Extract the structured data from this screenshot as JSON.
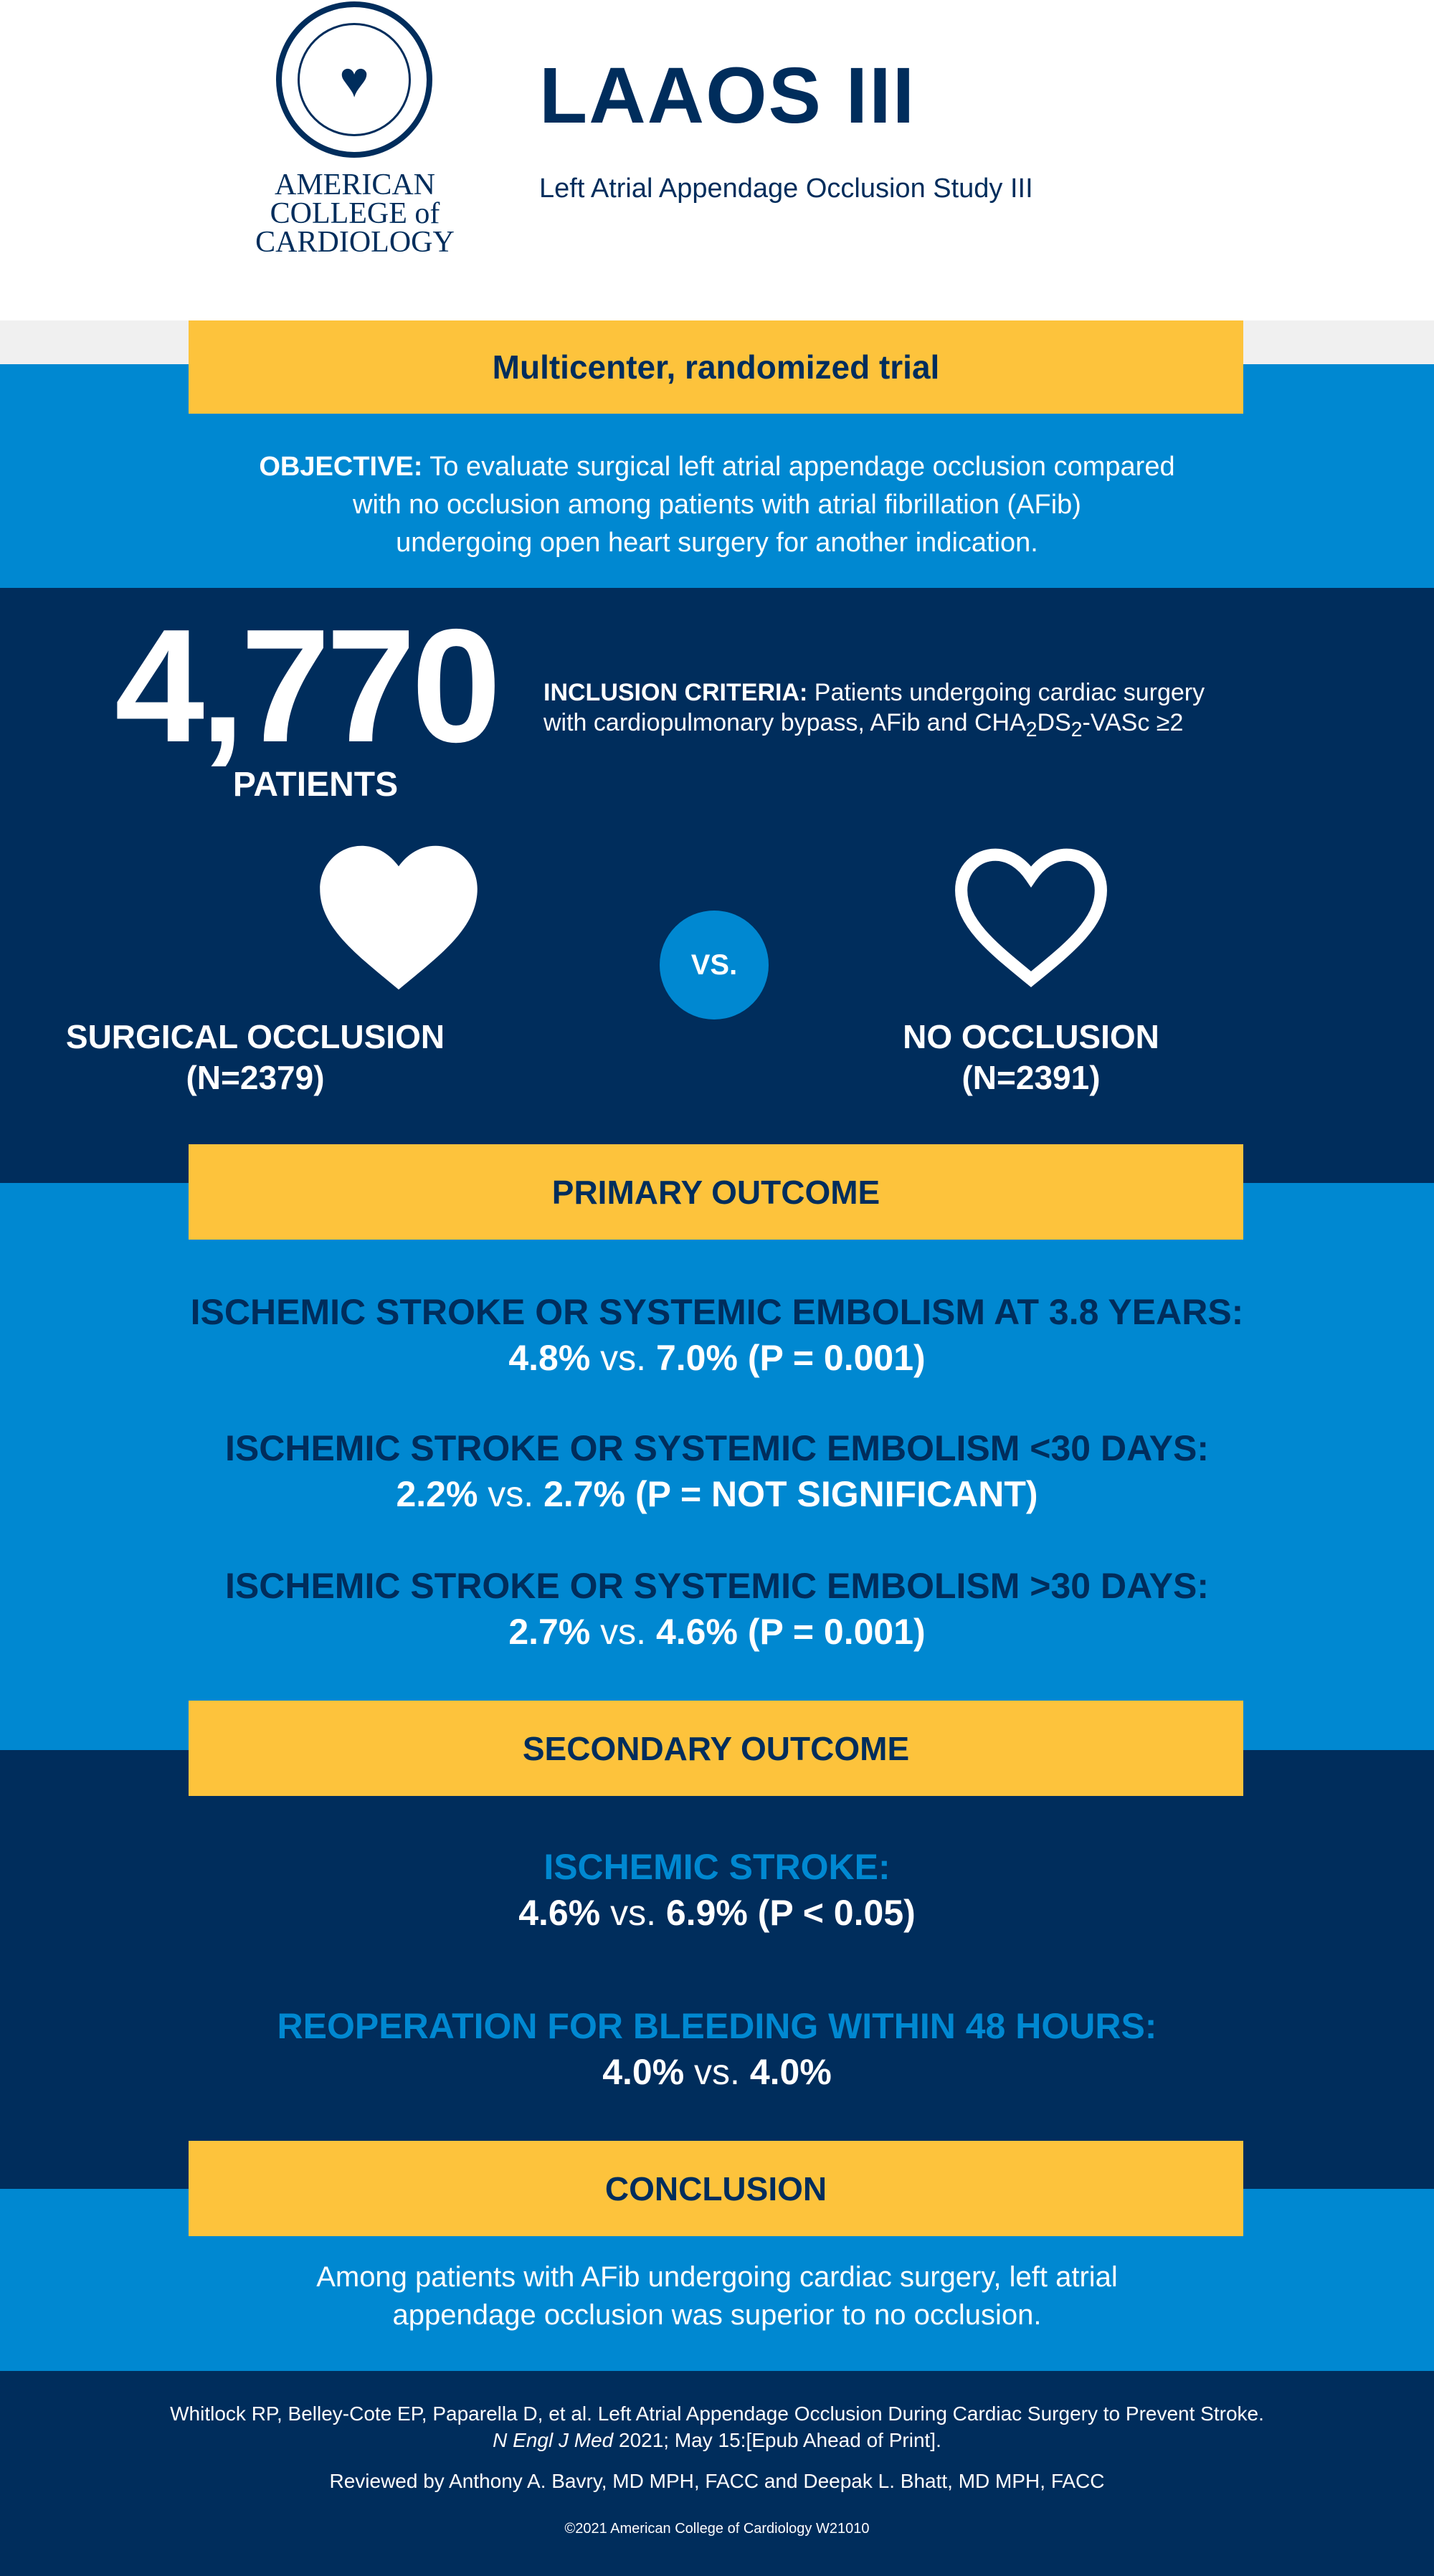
{
  "header": {
    "logo_text": [
      "AMERICAN",
      "COLLEGE of",
      "CARDIOLOGY"
    ],
    "logo_seal_text": "AMERICAN COLLEGE OF CARDIOLOGY",
    "title": "LAAOS III",
    "subtitle": "Left Atrial Appendage Occlusion Study III"
  },
  "design": {
    "label": "Multicenter, randomized trial"
  },
  "objective": {
    "label": "OBJECTIVE:",
    "lines": [
      " To evaluate surgical left atrial appendage occlusion compared",
      "with no occlusion among patients with atrial fibrillation (AFib)",
      "undergoing open heart surgery for another indication."
    ]
  },
  "patients": {
    "count": "4,770",
    "label": "PATIENTS"
  },
  "inclusion": {
    "label": "INCLUSION CRITERIA:",
    "line1": " Patients undergoing cardiac surgery",
    "line2": "with cardiopulmonary bypass, AFib and CHA",
    "sub1": "2",
    "mid": "DS",
    "sub2": "2",
    "end": "-VASc ≥2"
  },
  "arms": {
    "vs": "VS.",
    "left": {
      "name": "SURGICAL OCCLUSION",
      "n": "(N=2379)",
      "icon": "heart-filled-icon"
    },
    "right": {
      "name": "NO OCCLUSION",
      "n": "(N=2391)",
      "icon": "heart-outline-icon"
    }
  },
  "primary": {
    "label": "PRIMARY OUTCOME",
    "items": [
      {
        "title": "ISCHEMIC STROKE OR SYSTEMIC EMBOLISM AT 3.8 YEARS:",
        "a": "4.8%",
        "vs": " vs. ",
        "b": "7.0% (P = 0.001)"
      },
      {
        "title": "ISCHEMIC STROKE OR SYSTEMIC EMBOLISM <30 DAYS:",
        "a": "2.2%",
        "vs": " vs. ",
        "b": "2.7% (P = NOT SIGNIFICANT)"
      },
      {
        "title": "ISCHEMIC STROKE OR SYSTEMIC EMBOLISM >30 DAYS:",
        "a": "2.7%",
        "vs": " vs. ",
        "b": "4.6% (P = 0.001)"
      }
    ]
  },
  "secondary": {
    "label": "SECONDARY OUTCOME",
    "items": [
      {
        "title": "ISCHEMIC STROKE:",
        "a": "4.6%",
        "vs": " vs. ",
        "b": "6.9% (P < 0.05)"
      },
      {
        "title": "REOPERATION FOR BLEEDING WITHIN 48 HOURS:",
        "a": "4.0%",
        "vs": " vs. ",
        "b": "4.0%"
      }
    ]
  },
  "conclusion": {
    "label": "CONCLUSION",
    "lines": [
      "Among patients with AFib undergoing cardiac surgery, left atrial",
      "appendage occlusion was superior to no occlusion."
    ]
  },
  "footer": {
    "citation1": "Whitlock RP, Belley-Cote EP, Paparella D, et al. Left Atrial Appendage Occlusion During Cardiac Surgery to Prevent Stroke.",
    "journal": "N Engl J Med",
    "citation2": " 2021; May 15:[Epub Ahead of Print].",
    "reviewed": "Reviewed by Anthony A. Bavry, MD MPH, FACC and Deepak L. Bhatt, MD MPH, FACC",
    "copyright": "©2021 American College of Cardiology W21010"
  },
  "colors": {
    "navy": "#002d5c",
    "blue": "#0088d1",
    "yellow": "#fdc33c"
  }
}
